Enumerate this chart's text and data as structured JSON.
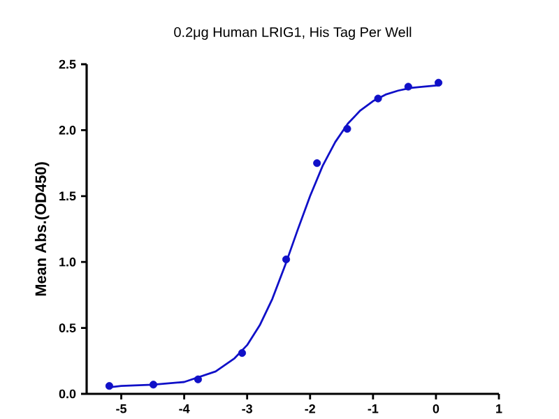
{
  "chart_data": {
    "type": "scatter",
    "title": "0.2μg Human LRIG1, His Tag Per Well",
    "ylabel": "Mean Abs.(OD450)",
    "xlim": [
      -5.55,
      1
    ],
    "xticks": [
      -5,
      -4,
      -3,
      -2,
      -1,
      0,
      1
    ],
    "ylim": [
      0,
      2.5
    ],
    "yticks": [
      {
        "value": 0,
        "label": "0.0"
      },
      0.5,
      {
        "value": 1,
        "label": "1.0"
      },
      1.5,
      {
        "value": 2,
        "label": "2.0"
      },
      2.5
    ],
    "grid": false,
    "series": [
      {
        "marker": "circle",
        "color": "#1010c8",
        "x": [
          -5.19,
          -4.49,
          -3.78,
          -3.08,
          -2.38,
          -1.89,
          -1.41,
          -0.92,
          -0.44,
          0.04
        ],
        "values": [
          0.06,
          0.07,
          0.11,
          0.31,
          1.02,
          1.75,
          2.01,
          2.24,
          2.33,
          2.36
        ]
      },
      {
        "type": "line",
        "marker": "none",
        "line_style": "solid",
        "color": "#1010c8",
        "x": [
          -5.19,
          -5.0,
          -4.5,
          -4.0,
          -3.5,
          -3.2,
          -3.0,
          -2.8,
          -2.6,
          -2.4,
          -2.2,
          -2.0,
          -1.8,
          -1.6,
          -1.4,
          -1.2,
          -1.0,
          -0.8,
          -0.6,
          -0.4,
          -0.2,
          0.04
        ],
        "values": [
          0.05,
          0.06,
          0.07,
          0.09,
          0.17,
          0.27,
          0.37,
          0.52,
          0.72,
          0.97,
          1.24,
          1.5,
          1.73,
          1.91,
          2.05,
          2.15,
          2.22,
          2.27,
          2.3,
          2.32,
          2.33,
          2.34
        ]
      }
    ]
  }
}
